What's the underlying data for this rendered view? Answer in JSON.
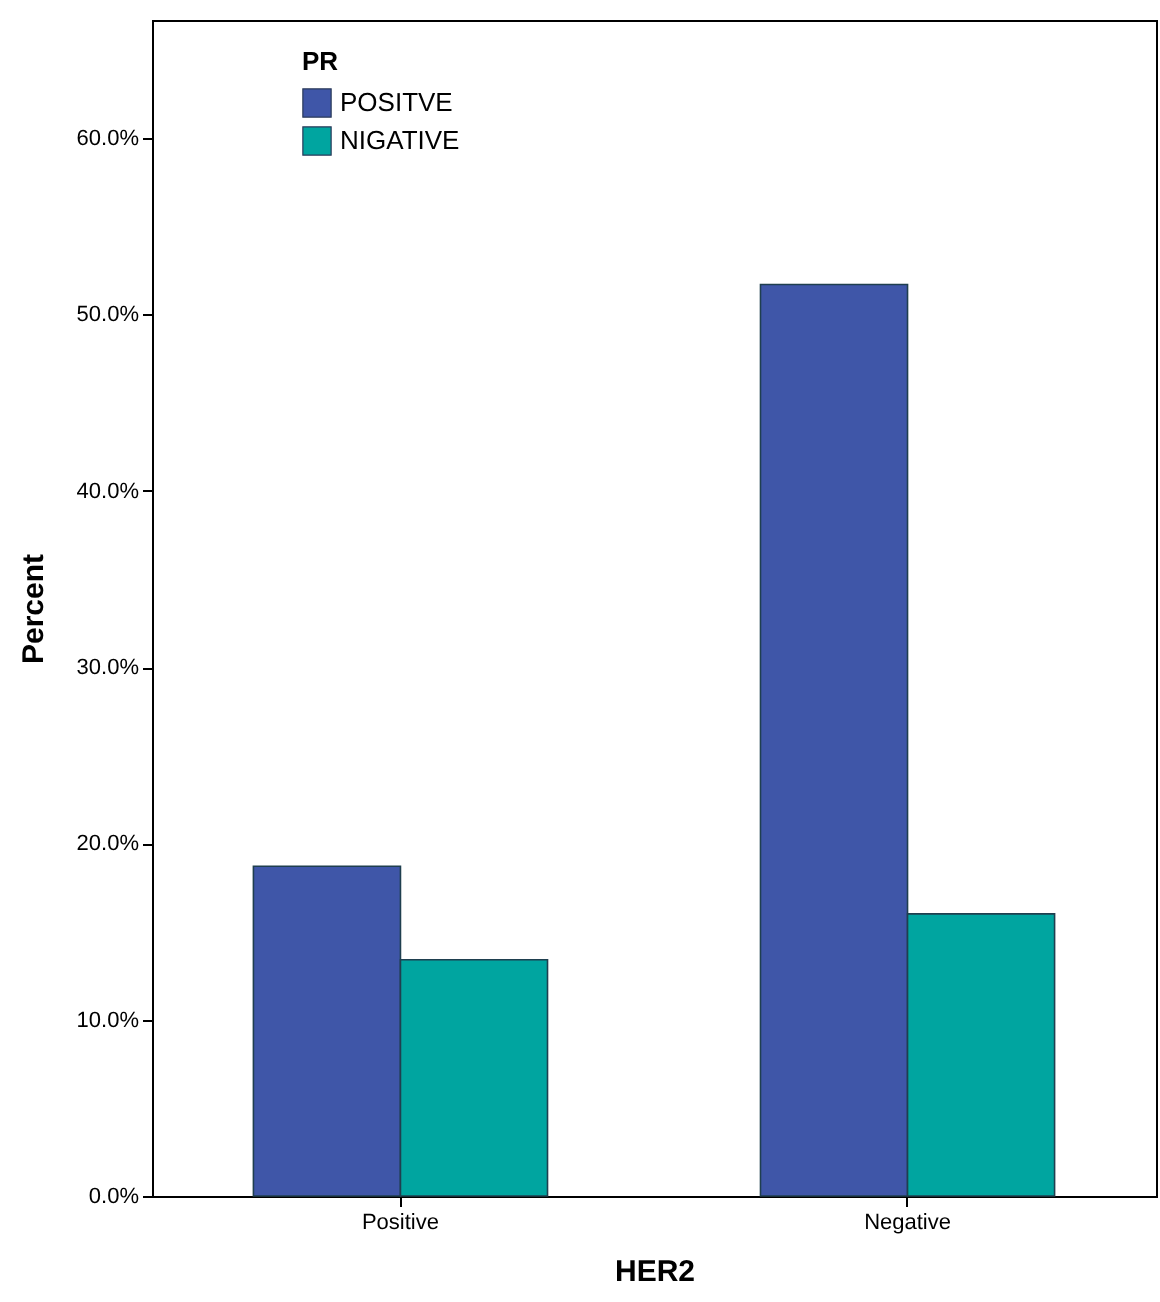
{
  "chart_data": {
    "type": "bar",
    "xlabel": "HER2",
    "ylabel": "Percent",
    "legend_title": "PR",
    "categories": [
      "Positive",
      "Negative"
    ],
    "series": [
      {
        "name": "POSITVE",
        "color": "#3f56a8",
        "values": [
          18.7,
          51.7
        ]
      },
      {
        "name": "NIGATIVE",
        "color": "#00a5a0",
        "values": [
          13.4,
          16.0
        ]
      }
    ],
    "ylim": [
      0,
      66.7
    ],
    "yticks": [
      {
        "value": 0,
        "label": "0.0%"
      },
      {
        "value": 10,
        "label": "10.0%"
      },
      {
        "value": 20,
        "label": "20.0%"
      },
      {
        "value": 30,
        "label": "30.0%"
      },
      {
        "value": 40,
        "label": "40.0%"
      },
      {
        "value": 50,
        "label": "50.0%"
      },
      {
        "value": 60,
        "label": "60.0%"
      }
    ],
    "legend": "top left",
    "grid": false
  }
}
